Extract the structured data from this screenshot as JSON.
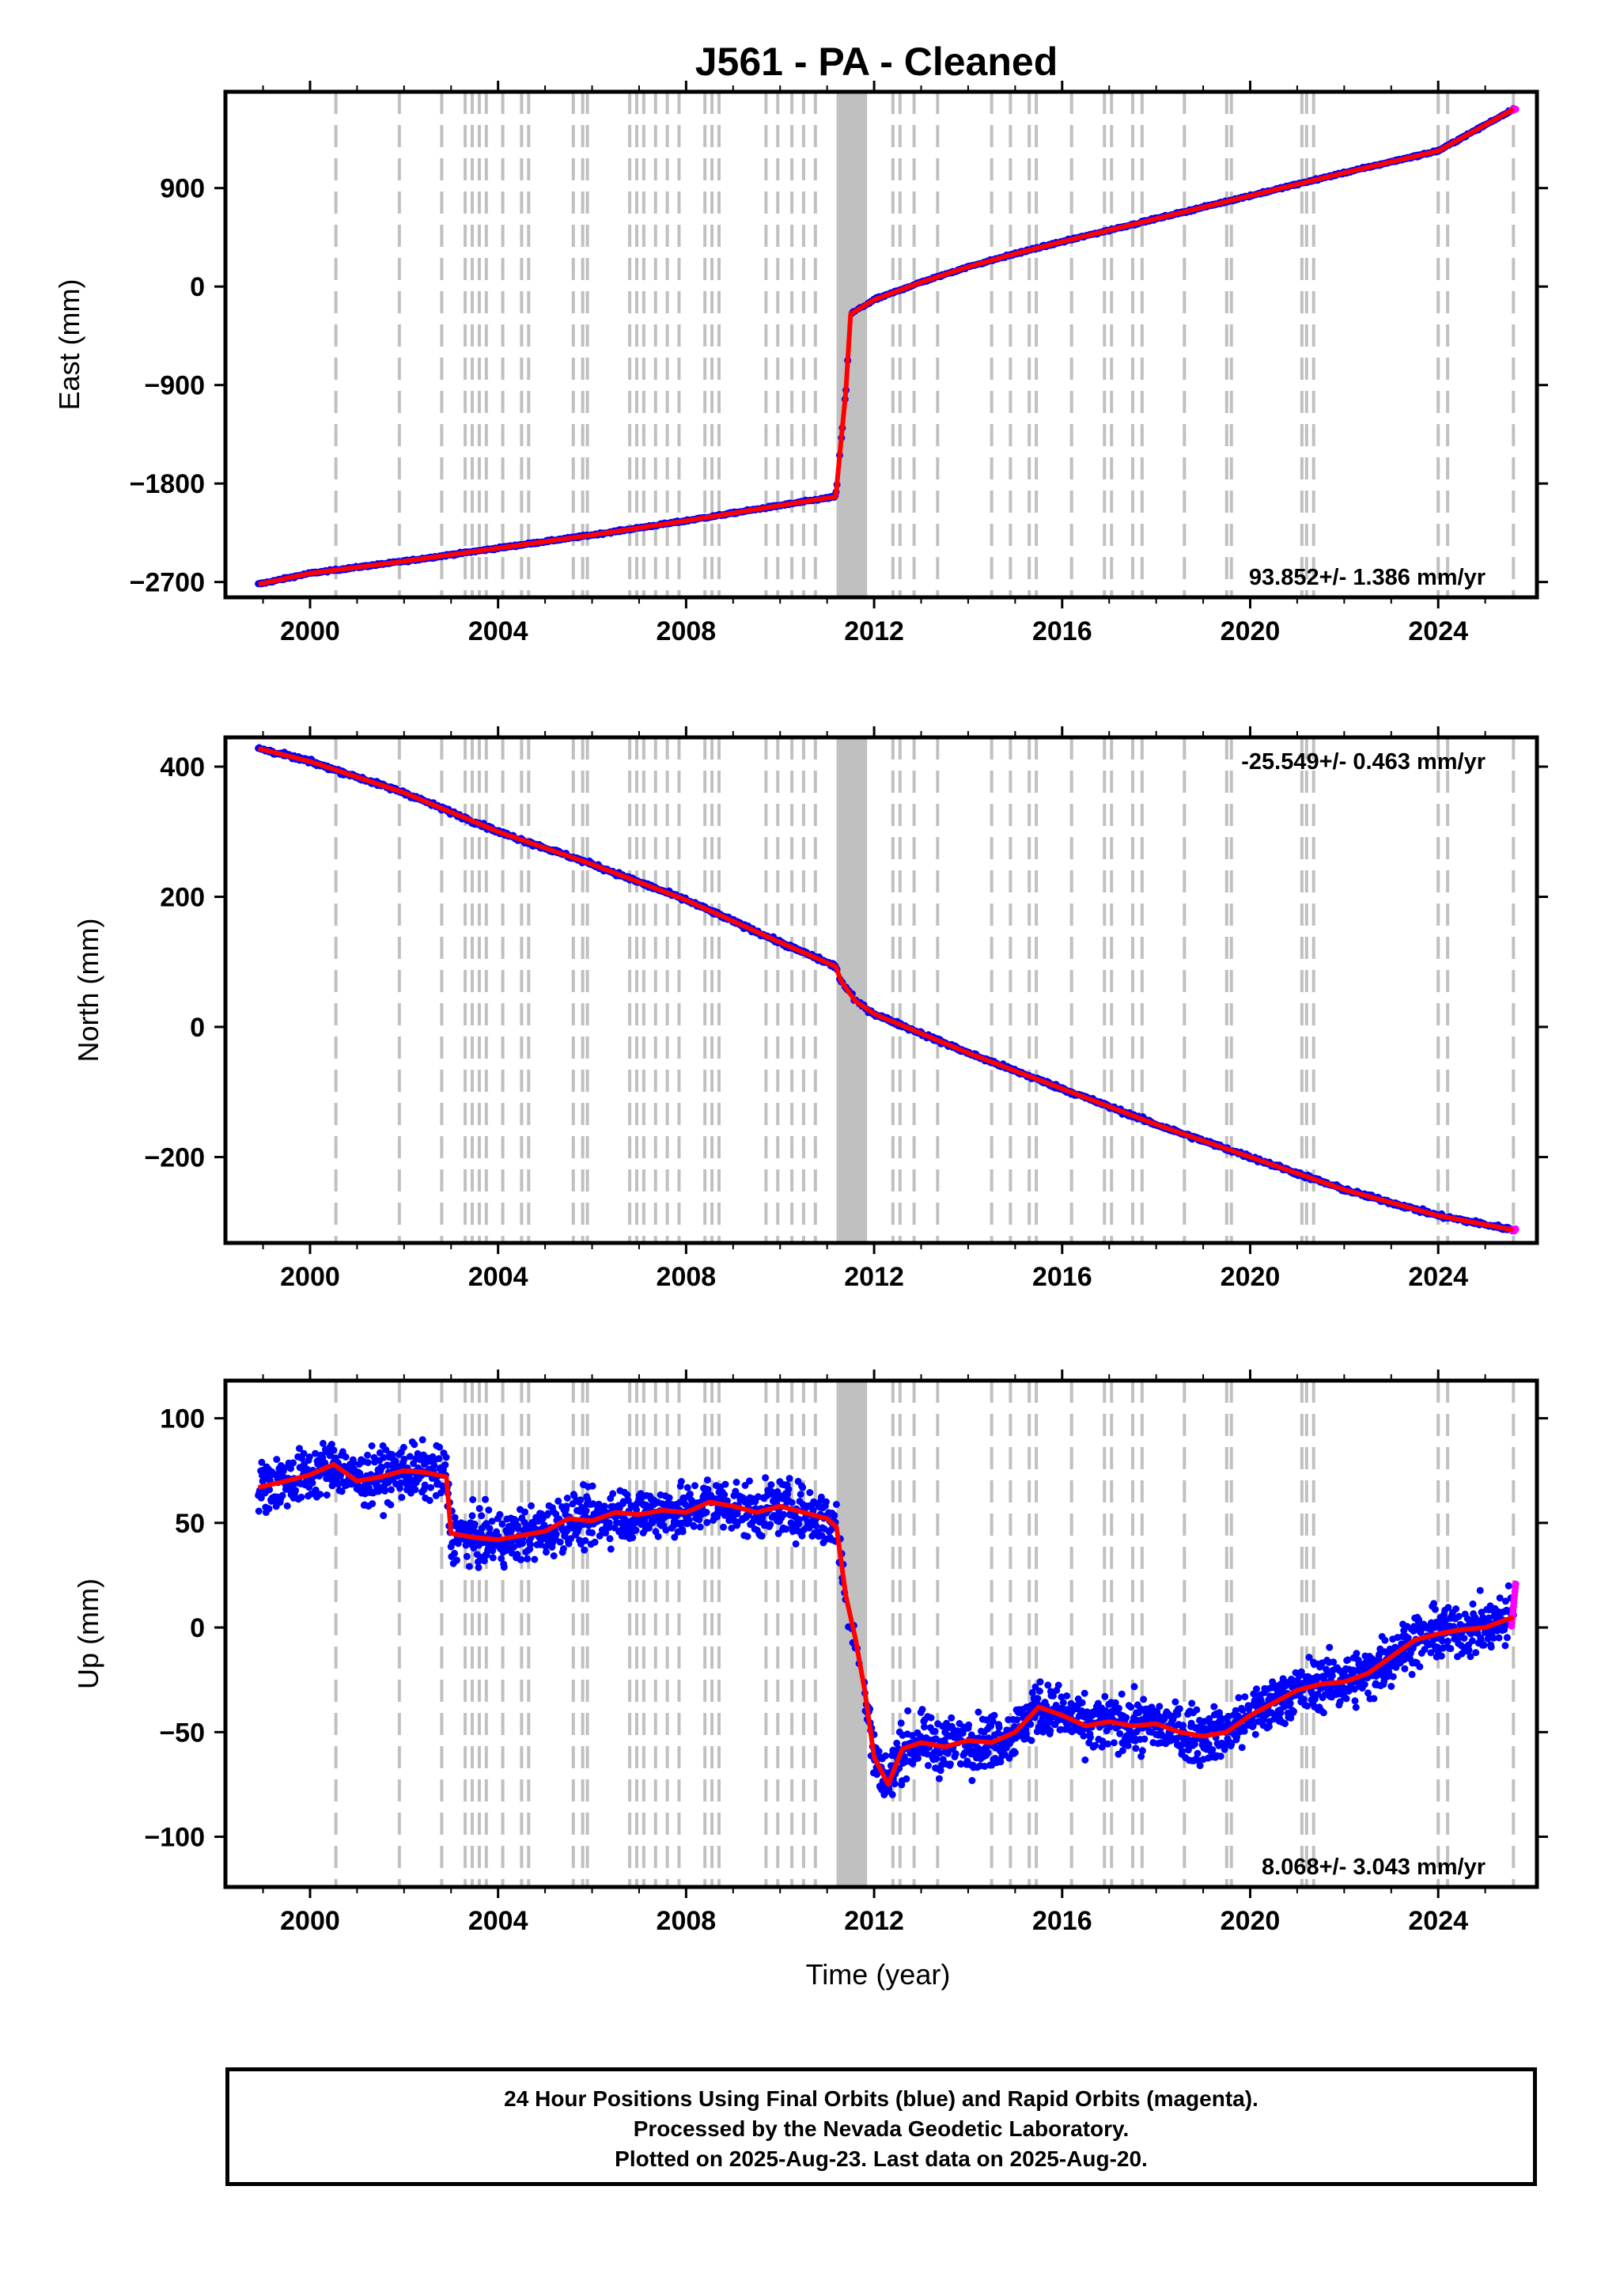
{
  "title": "J561  - PA - Cleaned",
  "xlabel": "Time (year)",
  "footer": {
    "line1": "24 Hour Positions Using Final Orbits (blue) and Rapid Orbits (magenta).",
    "line2": "Processed by the Nevada Geodetic Laboratory.",
    "line3": "Plotted on 2025-Aug-23. Last data on 2025-Aug-20."
  },
  "colors": {
    "final": "#0000ff",
    "rapid": "#ff00ff",
    "model": "#ff0000",
    "event": "#c0c0c0",
    "axis": "#000000"
  },
  "chart_data": [
    {
      "type": "scatter",
      "ylabel": "East (mm)",
      "xlim": [
        1998.2,
        2026.1
      ],
      "ylim": [
        -2840,
        1780
      ],
      "xticks": [
        2000,
        2004,
        2008,
        2012,
        2016,
        2020,
        2024
      ],
      "yticks": [
        -2700,
        -1800,
        -900,
        0,
        900
      ],
      "ytick_labels": [
        "−2700",
        "−1800",
        "−900",
        "0",
        "900"
      ],
      "rate_label": "93.852+/- 1.386 mm/yr",
      "rate_position": "bottom-right",
      "series": [
        {
          "values": [
            [
              1998.9,
              -2720
            ],
            [
              2000,
              -2620
            ],
            [
              2002,
              -2510
            ],
            [
              2004,
              -2390
            ],
            [
              2006,
              -2270
            ],
            [
              2008,
              -2140
            ],
            [
              2010,
              -2000
            ],
            [
              2011.18,
              -1920
            ],
            [
              2011.2,
              -1850
            ],
            [
              2011.4,
              -950
            ],
            [
              2011.5,
              -250
            ],
            [
              2012,
              -120
            ],
            [
              2013,
              40
            ],
            [
              2014,
              180
            ],
            [
              2015,
              300
            ],
            [
              2016,
              410
            ],
            [
              2018,
              620
            ],
            [
              2020,
              830
            ],
            [
              2022,
              1040
            ],
            [
              2024,
              1240
            ],
            [
              2025.6,
              1620
            ]
          ]
        }
      ]
    },
    {
      "type": "scatter",
      "ylabel": "North (mm)",
      "xlim": [
        1998.2,
        2026.1
      ],
      "ylim": [
        -332,
        445
      ],
      "xticks": [
        2000,
        2004,
        2008,
        2012,
        2016,
        2020,
        2024
      ],
      "yticks": [
        -200,
        0,
        200,
        400
      ],
      "ytick_labels": [
        "−200",
        "0",
        "200",
        "400"
      ],
      "rate_label": "-25.549+/- 0.463 mm/yr",
      "rate_position": "top-right",
      "series": [
        {
          "values": [
            [
              1998.9,
              428
            ],
            [
              2000,
              408
            ],
            [
              2002,
              360
            ],
            [
              2004,
              300
            ],
            [
              2006,
              250
            ],
            [
              2008,
              195
            ],
            [
              2010,
              130
            ],
            [
              2011.18,
              93
            ],
            [
              2011.3,
              70
            ],
            [
              2011.6,
              40
            ],
            [
              2012,
              20
            ],
            [
              2014,
              -40
            ],
            [
              2016,
              -95
            ],
            [
              2018,
              -150
            ],
            [
              2020,
              -200
            ],
            [
              2022,
              -250
            ],
            [
              2024,
              -290
            ],
            [
              2025.6,
              -312
            ]
          ]
        }
      ]
    },
    {
      "type": "scatter",
      "ylabel": "Up (mm)",
      "xlim": [
        1998.2,
        2026.1
      ],
      "ylim": [
        -124,
        118
      ],
      "xticks": [
        2000,
        2004,
        2008,
        2012,
        2016,
        2020,
        2024
      ],
      "yticks": [
        -100,
        -50,
        0,
        50,
        100
      ],
      "ytick_labels": [
        "−100",
        "−50",
        "0",
        "50",
        "100"
      ],
      "rate_label": "8.068+/- 3.043 mm/yr",
      "rate_position": "bottom-right",
      "series": [
        {
          "values": [
            [
              1998.9,
              67
            ],
            [
              1999.5,
              70
            ],
            [
              2000,
              73
            ],
            [
              2000.5,
              78
            ],
            [
              2001,
              70
            ],
            [
              2001.5,
              72
            ],
            [
              2002,
              75
            ],
            [
              2002.5,
              74
            ],
            [
              2002.9,
              72
            ],
            [
              2003,
              45
            ],
            [
              2003.5,
              43
            ],
            [
              2004,
              42
            ],
            [
              2004.5,
              44
            ],
            [
              2005,
              46
            ],
            [
              2005.5,
              52
            ],
            [
              2006,
              51
            ],
            [
              2006.5,
              55
            ],
            [
              2007,
              54
            ],
            [
              2007.5,
              56
            ],
            [
              2008,
              55
            ],
            [
              2008.5,
              60
            ],
            [
              2009,
              58
            ],
            [
              2009.5,
              55
            ],
            [
              2010,
              58
            ],
            [
              2010.5,
              55
            ],
            [
              2011,
              52
            ],
            [
              2011.2,
              48
            ],
            [
              2011.4,
              15
            ],
            [
              2011.6,
              -5
            ],
            [
              2011.8,
              -30
            ],
            [
              2012,
              -62
            ],
            [
              2012.3,
              -75
            ],
            [
              2012.6,
              -58
            ],
            [
              2013,
              -55
            ],
            [
              2013.5,
              -57
            ],
            [
              2014,
              -54
            ],
            [
              2014.5,
              -55
            ],
            [
              2015,
              -50
            ],
            [
              2015.5,
              -38
            ],
            [
              2016,
              -42
            ],
            [
              2016.5,
              -47
            ],
            [
              2017,
              -45
            ],
            [
              2017.5,
              -47
            ],
            [
              2018,
              -46
            ],
            [
              2018.5,
              -50
            ],
            [
              2019,
              -52
            ],
            [
              2019.5,
              -50
            ],
            [
              2020,
              -42
            ],
            [
              2020.5,
              -36
            ],
            [
              2021,
              -30
            ],
            [
              2021.5,
              -27
            ],
            [
              2022,
              -26
            ],
            [
              2022.5,
              -22
            ],
            [
              2023,
              -14
            ],
            [
              2023.5,
              -6
            ],
            [
              2024,
              -3
            ],
            [
              2024.5,
              -1
            ],
            [
              2025,
              0
            ],
            [
              2025.6,
              5
            ]
          ]
        }
      ]
    }
  ]
}
